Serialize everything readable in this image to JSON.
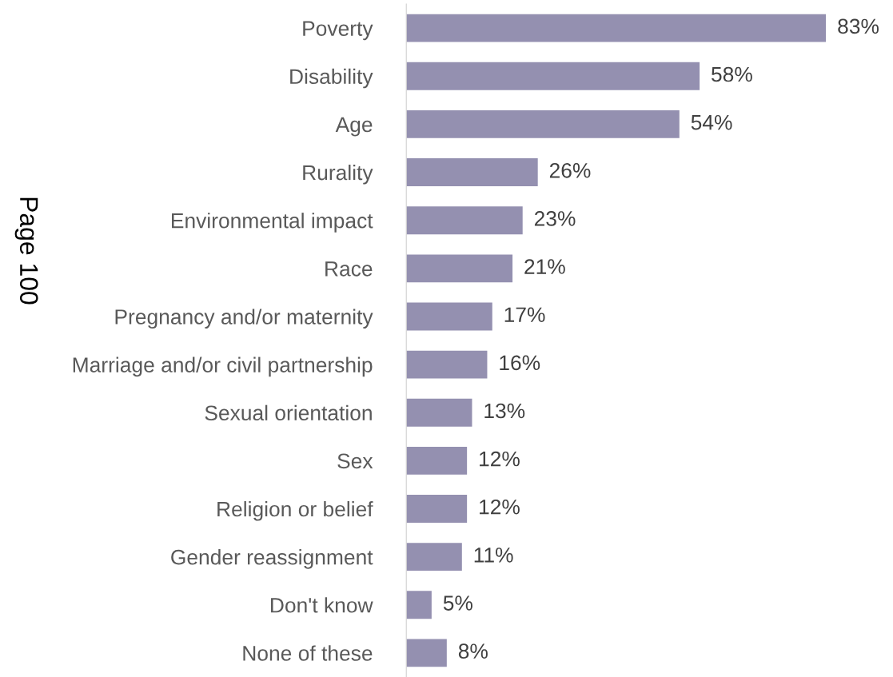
{
  "chart_data": {
    "type": "bar",
    "orientation": "horizontal",
    "categories": [
      "Poverty",
      "Disability",
      "Age",
      "Rurality",
      "Environmental impact",
      "Race",
      "Pregnancy and/or maternity",
      "Marriage and/or civil partnership",
      "Sexual orientation",
      "Sex",
      "Religion or belief",
      "Gender reassignment",
      "Don't know",
      "None of these"
    ],
    "values": [
      83,
      58,
      54,
      26,
      23,
      21,
      17,
      16,
      13,
      12,
      12,
      11,
      5,
      8
    ],
    "value_labels": [
      "83%",
      "58%",
      "54%",
      "26%",
      "23%",
      "21%",
      "17%",
      "16%",
      "13%",
      "12%",
      "12%",
      "11%",
      "5%",
      "8%"
    ],
    "color": "#9490b0",
    "tick_labels": "y",
    "grid": false,
    "legend": false,
    "annotations": [
      "Page 100"
    ]
  }
}
